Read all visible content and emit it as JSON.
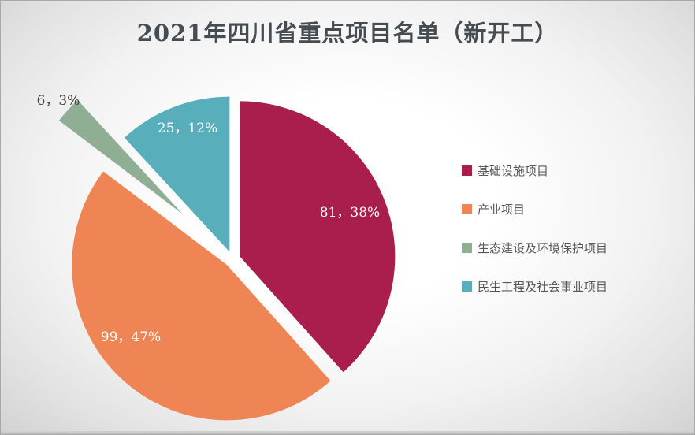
{
  "chart_data": {
    "type": "pie",
    "title": "2021年四川省重点项目名单（新开工）",
    "categories": [
      "基础设施项目",
      "产业项目",
      "生态建设及环境保护项目",
      "民生工程及社会事业项目"
    ],
    "values": [
      81,
      99,
      6,
      25
    ],
    "percents": [
      38,
      47,
      3,
      12
    ],
    "data_labels": [
      "81，38%",
      "99，47%",
      "6，3%",
      "25，12%"
    ],
    "colors": [
      "#A91E4D",
      "#EF8454",
      "#90AE93",
      "#58AFBB"
    ],
    "label_colors": [
      "#FFFFFF",
      "#FFFFFF",
      "#3F3F3F",
      "#FFFFFF"
    ],
    "legend_position": "right",
    "start_angle_deg": 0,
    "direction": "clockwise",
    "exploded": true,
    "title_color": "#454C52",
    "legend_text_color": "#595959"
  }
}
